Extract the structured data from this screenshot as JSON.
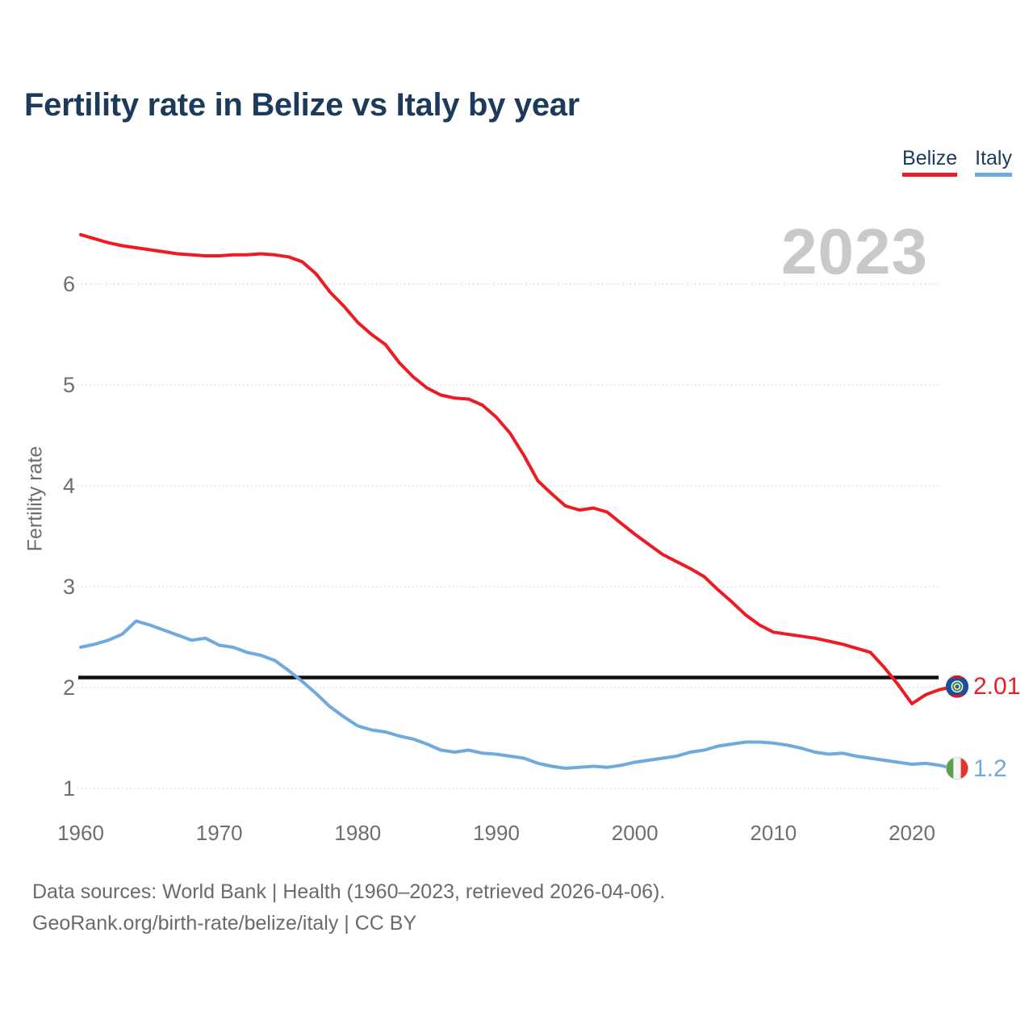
{
  "title": "Fertility rate in Belize vs Italy by year",
  "legend": {
    "belize": "Belize",
    "italy": "Italy"
  },
  "watermark": {
    "text": "2023"
  },
  "y_axis": {
    "label": "Fertility rate",
    "ticks": [
      1,
      2,
      3,
      4,
      5,
      6
    ]
  },
  "x_axis": {
    "ticks": [
      1960,
      1970,
      1980,
      1990,
      2000,
      2010,
      2020
    ]
  },
  "reference_line": {
    "value": 2.1
  },
  "end_labels": {
    "belize": "2.01",
    "italy": "1.2"
  },
  "footer": {
    "line1": "Data sources: World Bank | Health (1960–2023, retrieved 2026-04-06).",
    "line2": "GeoRank.org/birth-rate/belize/italy | CC BY"
  },
  "colors": {
    "belize_red": "#ed1b23",
    "italy_blue": "#70a9de",
    "title_navy": "#1c3a5c",
    "axis_gray": "#6e6e6e",
    "grid_gray": "#dcdcdc",
    "watermark_gray": "#c9c9c9",
    "reference_black": "#111111",
    "footer_gray": "#6a6a6a"
  },
  "chart_data": {
    "type": "line",
    "title": "Fertility rate in Belize vs Italy by year",
    "xlabel": "",
    "ylabel": "Fertility rate",
    "ylim": [
      1,
      6.6
    ],
    "xlim": [
      1960,
      2023
    ],
    "grid": "horizontal-dotted",
    "legend_position": "top-right",
    "annotations": {
      "watermark_year": "2023",
      "replacement_level_line": 2.1
    },
    "x": [
      1960,
      1961,
      1962,
      1963,
      1964,
      1965,
      1966,
      1967,
      1968,
      1969,
      1970,
      1971,
      1972,
      1973,
      1974,
      1975,
      1976,
      1977,
      1978,
      1979,
      1980,
      1981,
      1982,
      1983,
      1984,
      1985,
      1986,
      1987,
      1988,
      1989,
      1990,
      1991,
      1992,
      1993,
      1994,
      1995,
      1996,
      1997,
      1998,
      1999,
      2000,
      2001,
      2002,
      2003,
      2004,
      2005,
      2006,
      2007,
      2008,
      2009,
      2010,
      2011,
      2012,
      2013,
      2014,
      2015,
      2016,
      2017,
      2018,
      2019,
      2020,
      2021,
      2022,
      2023
    ],
    "series": [
      {
        "name": "Belize",
        "color": "#ed1b23",
        "end_label": "2.01",
        "values": [
          6.49,
          6.45,
          6.41,
          6.38,
          6.36,
          6.34,
          6.32,
          6.3,
          6.29,
          6.28,
          6.28,
          6.29,
          6.29,
          6.3,
          6.29,
          6.27,
          6.22,
          6.1,
          5.92,
          5.78,
          5.62,
          5.5,
          5.4,
          5.22,
          5.08,
          4.97,
          4.9,
          4.87,
          4.86,
          4.8,
          4.68,
          4.52,
          4.3,
          4.05,
          3.92,
          3.8,
          3.76,
          3.78,
          3.74,
          3.63,
          3.52,
          3.42,
          3.32,
          3.25,
          3.18,
          3.1,
          2.97,
          2.85,
          2.72,
          2.62,
          2.55,
          2.53,
          2.51,
          2.49,
          2.46,
          2.43,
          2.39,
          2.35,
          2.2,
          2.03,
          1.84,
          1.93,
          1.98,
          2.01
        ]
      },
      {
        "name": "Italy",
        "color": "#70a9de",
        "end_label": "1.2",
        "values": [
          2.4,
          2.43,
          2.47,
          2.53,
          2.66,
          2.62,
          2.57,
          2.52,
          2.47,
          2.49,
          2.42,
          2.4,
          2.35,
          2.32,
          2.27,
          2.17,
          2.06,
          1.94,
          1.81,
          1.71,
          1.62,
          1.58,
          1.56,
          1.52,
          1.49,
          1.44,
          1.38,
          1.36,
          1.38,
          1.35,
          1.34,
          1.32,
          1.3,
          1.25,
          1.22,
          1.2,
          1.21,
          1.22,
          1.21,
          1.23,
          1.26,
          1.28,
          1.3,
          1.32,
          1.36,
          1.38,
          1.42,
          1.44,
          1.46,
          1.46,
          1.45,
          1.43,
          1.4,
          1.36,
          1.34,
          1.35,
          1.32,
          1.3,
          1.28,
          1.26,
          1.24,
          1.25,
          1.23,
          1.2
        ]
      }
    ]
  }
}
